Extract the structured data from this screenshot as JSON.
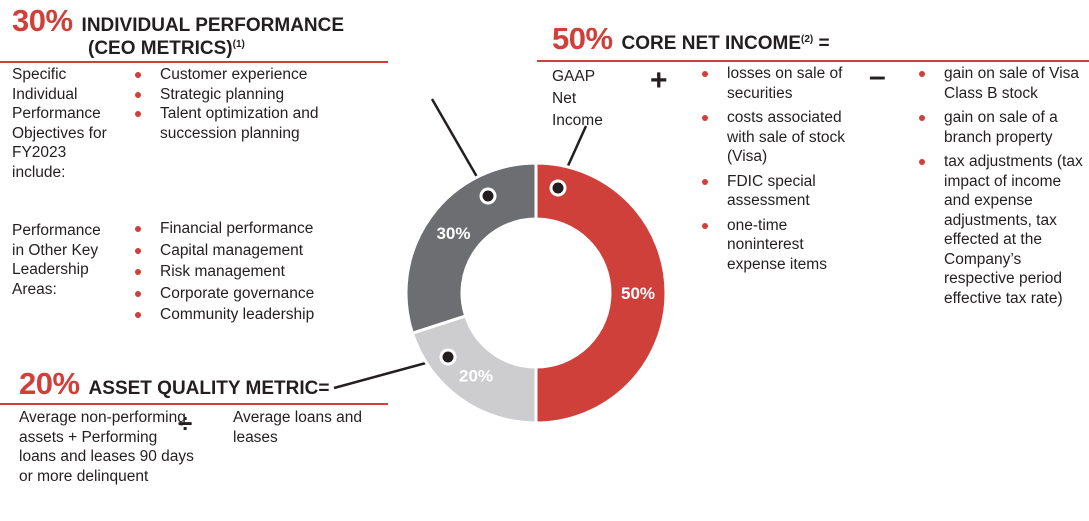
{
  "individual": {
    "percent": "30%",
    "title_line1": "INDIVIDUAL PERFORMANCE",
    "title_line2": "(CEO METRICS)",
    "footnote": "(1)",
    "groups": [
      {
        "label": "Specific Individual Performance Objectives for FY2023 include:",
        "items": [
          "Customer experience",
          "Strategic planning",
          "Talent optimization and succession planning"
        ]
      },
      {
        "label": "Performance in Other Key Leadership Areas:",
        "items": [
          "Financial performance",
          "Capital management",
          "Risk management",
          "Corporate governance",
          "Community leadership"
        ]
      }
    ]
  },
  "core": {
    "percent": "50%",
    "title": "CORE NET INCOME",
    "footnote": "(2)",
    "equals": "=",
    "base": "GAAP Net Income",
    "plus": "+",
    "minus": "–",
    "plus_items": [
      "losses on sale of securities",
      "costs associated with sale of stock (Visa)",
      "FDIC special assessment",
      "one-time noninterest expense items"
    ],
    "minus_items": [
      "gain on sale of Visa Class B stock",
      "gain on sale of a branch property",
      "tax adjustments (tax impact of income and expense adjustments, tax effected at the Company’s respective period effective tax rate)"
    ]
  },
  "asset": {
    "percent": "20%",
    "title": "ASSET QUALITY METRIC=",
    "numerator": "Average non-performing assets + Performing loans and leases 90 days or more delinquent",
    "divide": "÷",
    "denominator": "Average loans and leases"
  },
  "chart_data": {
    "type": "pie",
    "variant": "donut",
    "categories": [
      "Core Net Income",
      "Asset Quality Metric",
      "Individual Performance"
    ],
    "values": [
      50,
      20,
      30
    ],
    "labels": [
      "50%",
      "20%",
      "30%"
    ],
    "colors": [
      "#d0403a",
      "#cdcdcf",
      "#6d6e71"
    ],
    "start": "top, clockwise"
  }
}
